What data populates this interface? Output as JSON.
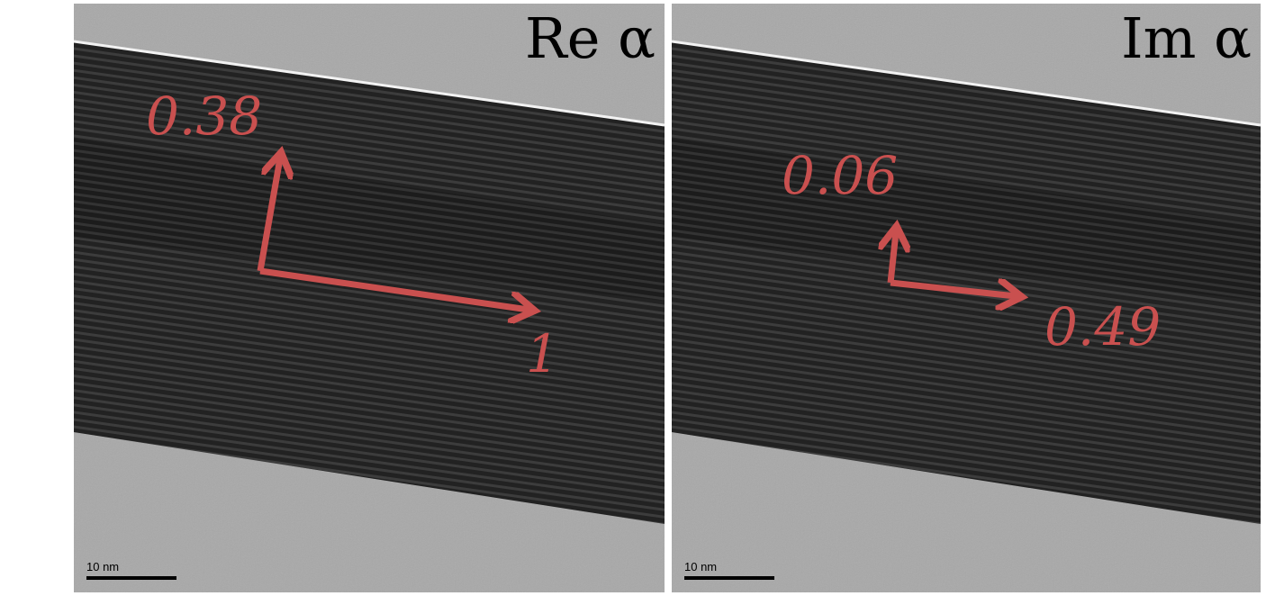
{
  "panels": [
    {
      "title": "Re α",
      "label_vertical": "0.38",
      "label_horizontal": "1",
      "scale_bar": "10 nm"
    },
    {
      "title": "Im α",
      "label_vertical": "0.06",
      "label_horizontal": "0.49",
      "scale_bar": "10 nm"
    }
  ],
  "colors": {
    "arrow": "#c9504f",
    "background_film": "#a9a9a9",
    "crystal_band": "#2b2b2b"
  }
}
